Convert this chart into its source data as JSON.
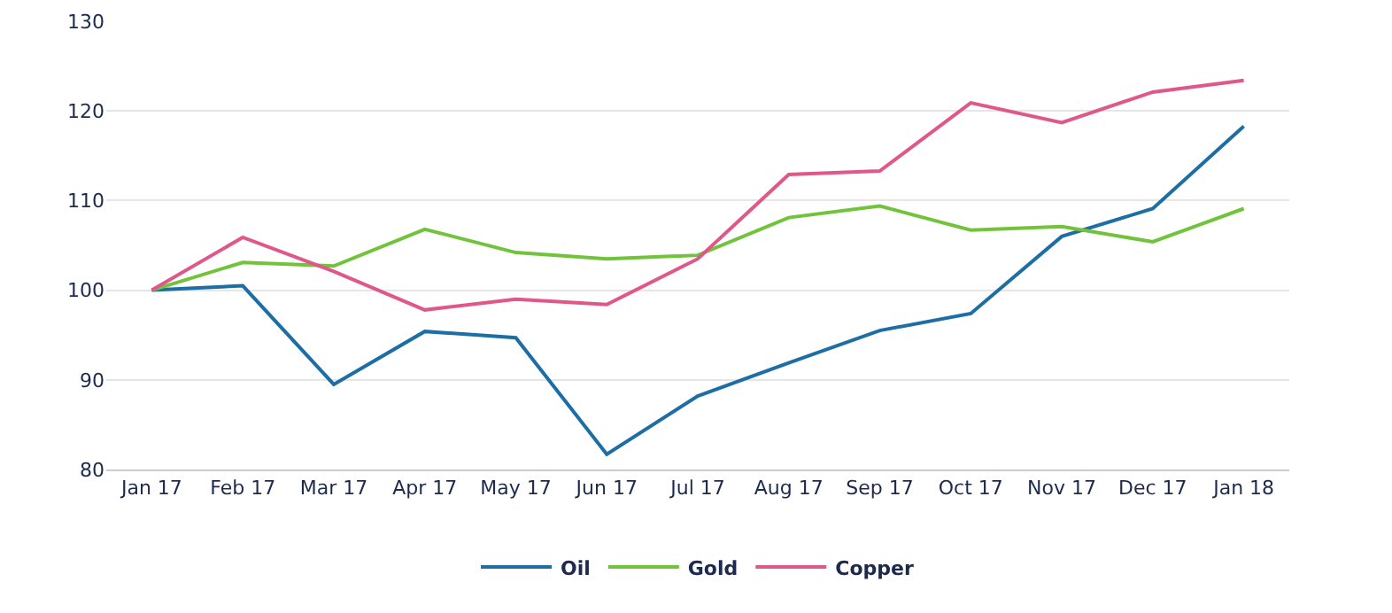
{
  "chart_data": {
    "type": "line",
    "categories": [
      "Jan 17",
      "Feb 17",
      "Mar 17",
      "Apr 17",
      "May 17",
      "Jun 17",
      "Jul 17",
      "Aug 17",
      "Sep 17",
      "Oct 17",
      "Nov 17",
      "Dec 17",
      "Jan 18"
    ],
    "series": [
      {
        "name": "Oil",
        "color": "#1c6ea4",
        "values": [
          100,
          100.5,
          89.5,
          95.4,
          94.7,
          81.7,
          88.2,
          91.9,
          95.5,
          97.4,
          106,
          109.1,
          118.3
        ]
      },
      {
        "name": "Gold",
        "color": "#72c33c",
        "values": [
          100,
          103.1,
          102.7,
          106.8,
          104.2,
          103.5,
          103.9,
          108.1,
          109.4,
          106.7,
          107.1,
          105.4,
          109.1
        ]
      },
      {
        "name": "Copper",
        "color": "#e0578a",
        "values": [
          100,
          105.9,
          102.1,
          97.8,
          99,
          98.4,
          103.5,
          112.9,
          113.3,
          120.9,
          118.7,
          122.1,
          123.4
        ]
      }
    ],
    "ylim": [
      80,
      130
    ],
    "yticks": [
      80,
      90,
      100,
      110,
      120,
      130
    ],
    "grid": "y",
    "legend": "bottom",
    "marker": "none",
    "line_style": "solid"
  }
}
